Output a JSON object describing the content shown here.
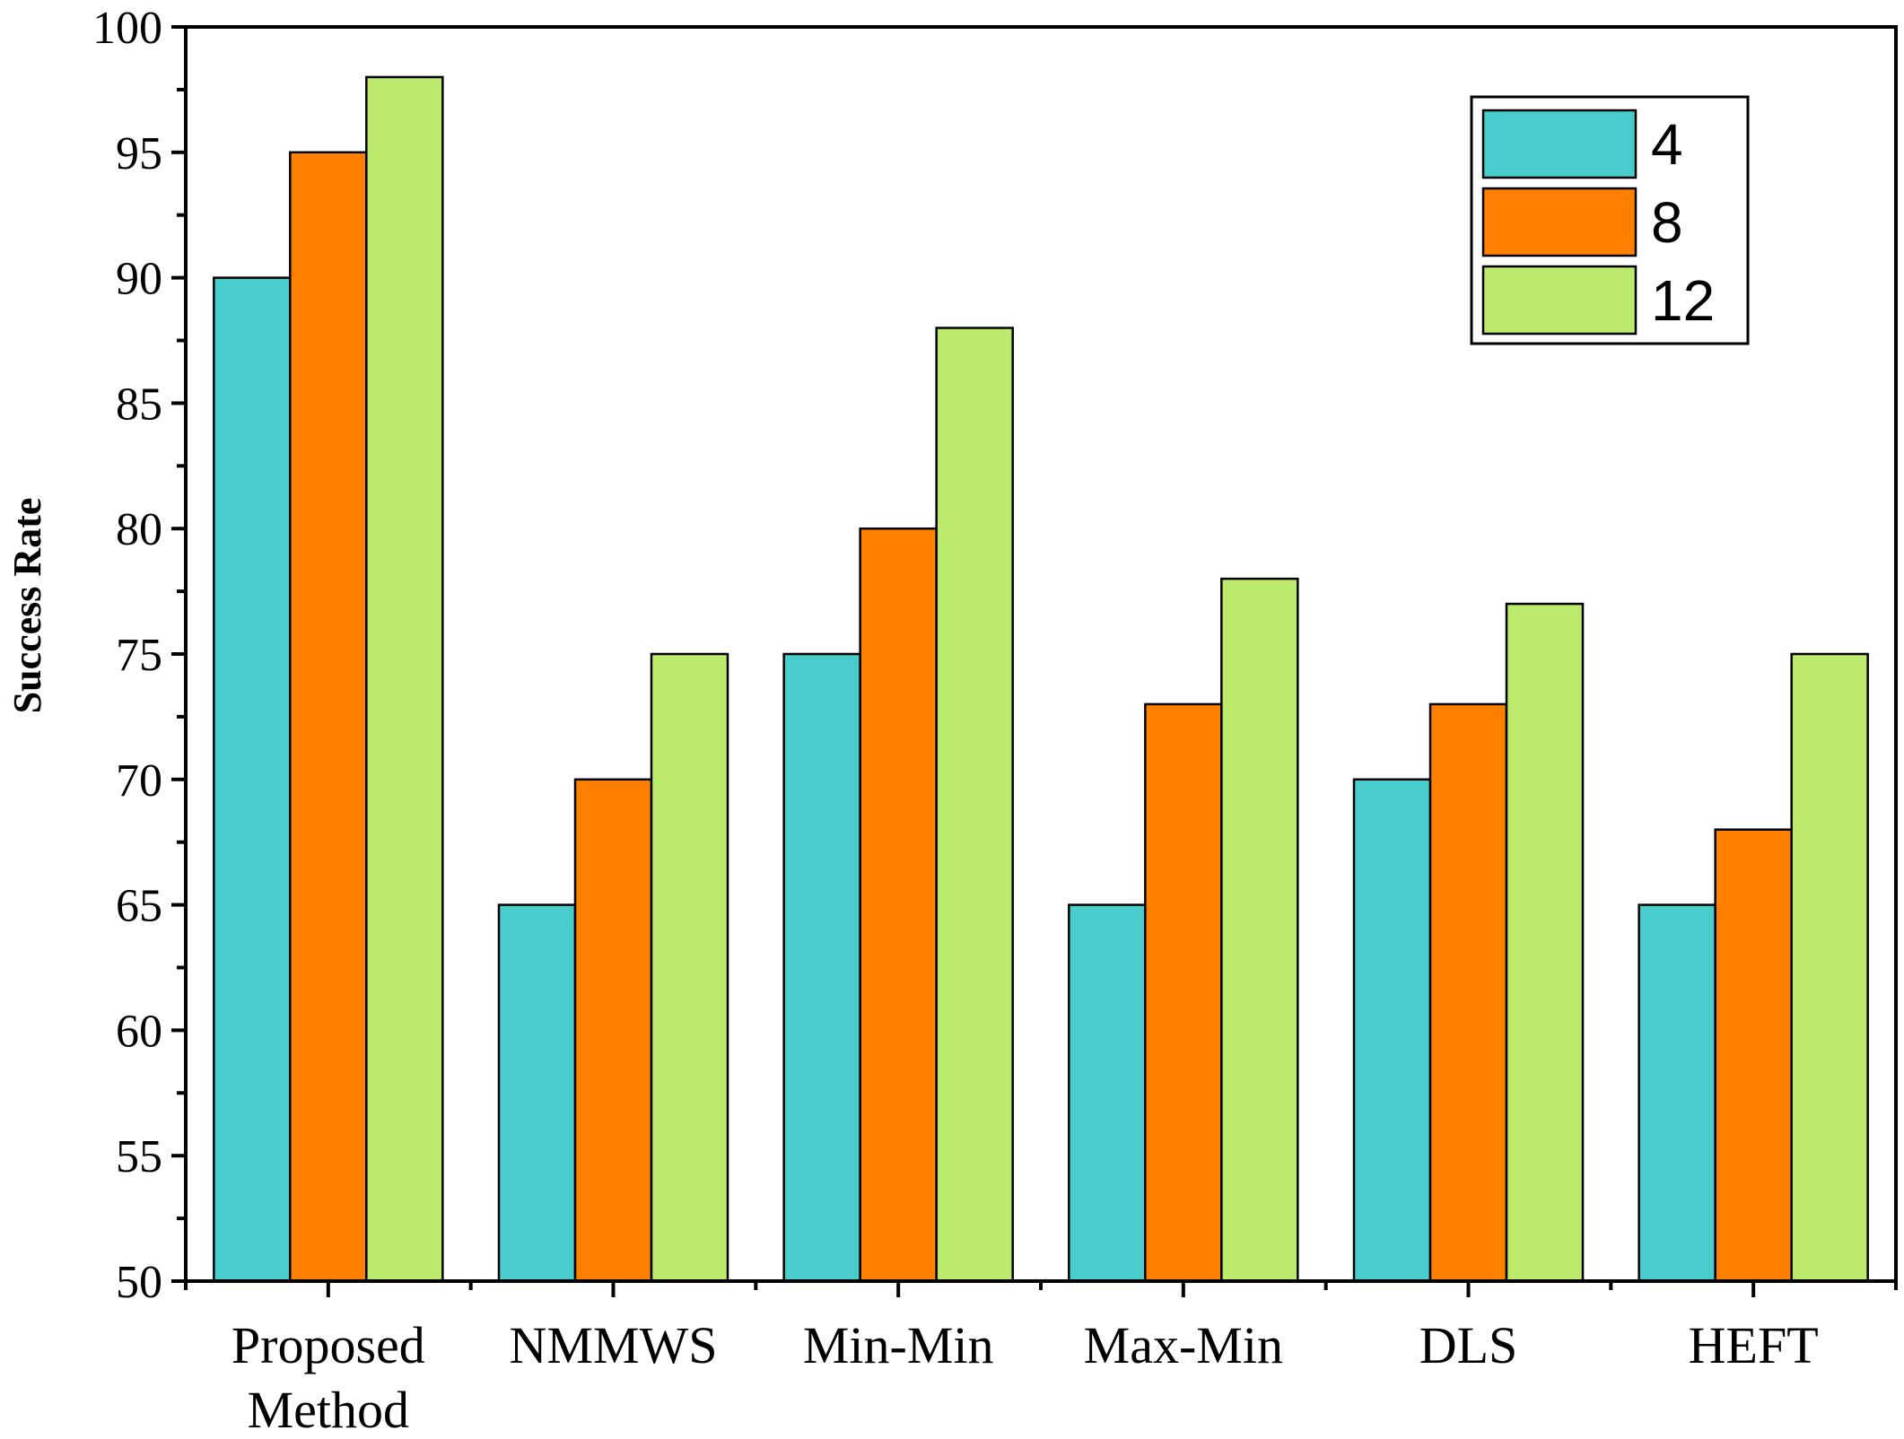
{
  "chart_data": {
    "type": "bar",
    "title": "",
    "xlabel": "",
    "ylabel": "Success Rate",
    "ylim": [
      50,
      100
    ],
    "ytick_step": 5,
    "yminor_step": 2.5,
    "categories": [
      [
        "Proposed",
        "Method"
      ],
      [
        "NMMWS"
      ],
      [
        "Min-Min"
      ],
      [
        "Max-Min"
      ],
      [
        "DLS"
      ],
      [
        "HEFT"
      ]
    ],
    "series": [
      {
        "name": "4",
        "color": "#48CDCC",
        "values": [
          90,
          65,
          75,
          65,
          70,
          65
        ]
      },
      {
        "name": "8",
        "color": "#FF8000",
        "values": [
          95,
          70,
          80,
          73,
          73,
          68
        ]
      },
      {
        "name": "12",
        "color": "#BBEA6C",
        "values": [
          98,
          75,
          88,
          78,
          77,
          75
        ]
      }
    ],
    "legend_position": "top-right",
    "grid": false
  }
}
